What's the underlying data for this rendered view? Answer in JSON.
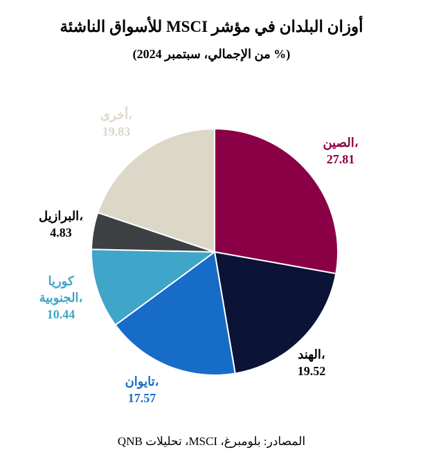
{
  "title": "أوزان البلدان في مؤشر MSCI للأسواق الناشئة",
  "subtitle": "(% من الإجمالي، سبتمبر 2024)",
  "source": "المصادر: بلومبرغ، MSCI، تحليلات QNB",
  "chart_data": {
    "type": "pie",
    "start_angle_deg": 0,
    "direction": "clockwise",
    "slices": [
      {
        "label": [
          "الصين،"
        ],
        "value": 27.81,
        "display": "27.81",
        "color": "#8a0046"
      },
      {
        "label": [
          "الهند،"
        ],
        "value": 19.52,
        "display": "19.52",
        "color": "#0b1337",
        "label_color": "#000000"
      },
      {
        "label": [
          "تايوان،"
        ],
        "value": 17.57,
        "display": "17.57",
        "color": "#176cc7"
      },
      {
        "label": [
          "كوريا",
          "الجنوبية،"
        ],
        "value": 10.44,
        "display": "10.44",
        "color": "#3fa5c9"
      },
      {
        "label": [
          "البرازيل،"
        ],
        "value": 4.83,
        "display": "4.83",
        "color": "#3e4143",
        "label_color": "#000000"
      },
      {
        "label": [
          "أخرى،"
        ],
        "value": 19.83,
        "display": "19.83",
        "color": "#ddd7c8"
      }
    ]
  }
}
